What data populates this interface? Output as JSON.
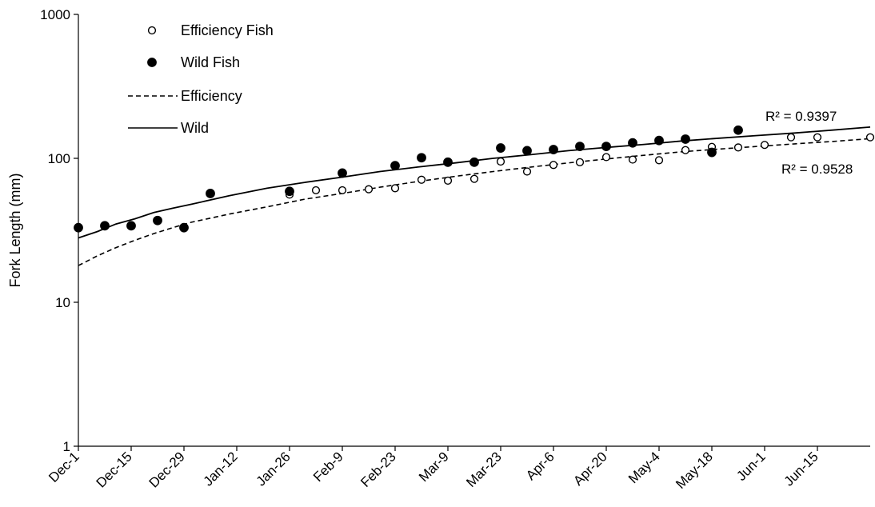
{
  "chart_data": {
    "type": "scatter",
    "title": "",
    "xlabel": "",
    "ylabel": "Fork Length (mm)",
    "yscale": "log",
    "ylim": [
      1,
      1000
    ],
    "yticks": [
      1,
      10,
      100,
      1000
    ],
    "ytick_labels": [
      "1",
      "10",
      "100",
      "1000"
    ],
    "xlim": [
      0,
      210
    ],
    "xticks": [
      0,
      14,
      28,
      42,
      56,
      70,
      84,
      98,
      112,
      126,
      140,
      154,
      168,
      182,
      196
    ],
    "xtick_labels": [
      "Dec-1",
      "Dec-15",
      "Dec-29",
      "Jan-12",
      "Jan-26",
      "Feb-9",
      "Feb-23",
      "Mar-9",
      "Mar-23",
      "Apr-6",
      "Apr-20",
      "May-4",
      "May-18",
      "Jun-1",
      "Jun-15"
    ],
    "grid": false,
    "legend_position": "top-left",
    "legend": [
      {
        "label": "Efficiency Fish",
        "marker": "open-circle"
      },
      {
        "label": "Wild Fish",
        "marker": "filled-circle"
      },
      {
        "label": "Efficiency",
        "line": "dashed"
      },
      {
        "label": "Wild",
        "line": "solid"
      }
    ],
    "series": [
      {
        "name": "Efficiency Fish",
        "marker": "open-circle",
        "x": [
          56,
          63,
          70,
          77,
          84,
          91,
          98,
          105,
          112,
          119,
          126,
          133,
          140,
          147,
          154,
          161,
          168,
          175,
          182,
          189,
          196,
          210
        ],
        "y": [
          56,
          60,
          60,
          61,
          62,
          71,
          70,
          72,
          95,
          81,
          90,
          94,
          102,
          98,
          97,
          114,
          120,
          119,
          124,
          140,
          140,
          140
        ]
      },
      {
        "name": "Wild Fish",
        "marker": "filled-circle",
        "x": [
          0,
          7,
          14,
          21,
          28,
          35,
          56,
          70,
          84,
          91,
          98,
          105,
          112,
          119,
          126,
          133,
          140,
          147,
          154,
          161,
          168,
          175
        ],
        "y": [
          33,
          34,
          34,
          37,
          33,
          57,
          59,
          79,
          89,
          101,
          94,
          94,
          118,
          113,
          115,
          121,
          121,
          128,
          133,
          136,
          110,
          157
        ]
      },
      {
        "name": "Efficiency",
        "line": "dashed",
        "x": [
          0,
          5,
          10,
          15,
          20,
          25,
          30,
          40,
          50,
          60,
          70,
          80,
          90,
          100,
          110,
          120,
          130,
          140,
          150,
          160,
          170,
          180,
          190,
          200,
          210
        ],
        "y": [
          18,
          21,
          24,
          27,
          30,
          33,
          36,
          41,
          46,
          52,
          57,
          63,
          69,
          75,
          81,
          87,
          93,
          99,
          105,
          111,
          116,
          121,
          126,
          131,
          137
        ]
      },
      {
        "name": "Wild",
        "line": "solid",
        "x": [
          0,
          5,
          10,
          15,
          20,
          25,
          30,
          40,
          50,
          60,
          70,
          80,
          90,
          100,
          110,
          120,
          130,
          140,
          150,
          160,
          170,
          180,
          190,
          200,
          210
        ],
        "y": [
          28,
          31,
          35,
          38,
          42,
          45,
          48,
          55,
          62,
          68,
          74,
          81,
          87,
          93,
          100,
          106,
          113,
          119,
          125,
          132,
          138,
          144,
          150,
          157,
          165
        ]
      }
    ],
    "annotations": [
      {
        "text": "R² = 0.9397",
        "series": "Wild"
      },
      {
        "text": "R² = 0.9528",
        "series": "Efficiency"
      }
    ]
  }
}
